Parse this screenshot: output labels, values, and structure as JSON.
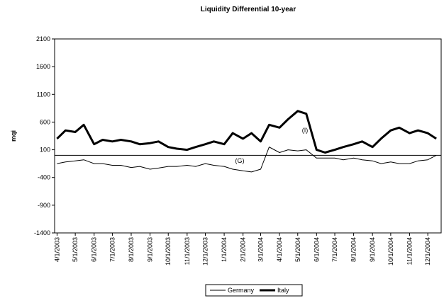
{
  "chart_data": {
    "type": "line",
    "title": "Liquidity Differential 10-year",
    "y_label": "mqi",
    "annotations": [
      "(G)",
      "(I)"
    ],
    "x": [
      "4/1/2003",
      "4/15/2003",
      "5/1/2003",
      "5/15/2003",
      "6/1/2003",
      "6/15/2003",
      "7/1/2003",
      "7/15/2003",
      "8/1/2003",
      "8/15/2003",
      "9/1/2003",
      "9/15/2003",
      "10/1/2003",
      "10/15/2003",
      "11/1/2003",
      "11/15/2003",
      "12/1/2003",
      "12/15/2003",
      "1/1/2004",
      "1/15/2004",
      "2/1/2004",
      "2/15/2004",
      "3/1/2004",
      "3/15/2004",
      "4/1/2004",
      "4/15/2004",
      "5/1/2004",
      "5/15/2004",
      "6/1/2004",
      "6/15/2004",
      "7/1/2004",
      "7/15/2004",
      "8/1/2004",
      "8/15/2004",
      "9/1/2004",
      "9/15/2004",
      "10/1/2004",
      "10/15/2004",
      "11/1/2004",
      "11/15/2004",
      "12/1/2004",
      "12/15/2004"
    ],
    "series": [
      {
        "name": "Germany",
        "color": "#000000",
        "width": 1,
        "values": [
          -150,
          -120,
          -100,
          -80,
          -150,
          -150,
          -180,
          -180,
          -220,
          -200,
          -250,
          -230,
          -200,
          -200,
          -180,
          -200,
          -150,
          -180,
          -200,
          -250,
          -280,
          -300,
          -250,
          150,
          50,
          100,
          80,
          100,
          -50,
          -50,
          -50,
          -80,
          -50,
          -80,
          -100,
          -150,
          -120,
          -150,
          -150,
          -100,
          -80,
          0
        ]
      },
      {
        "name": "Italy",
        "color": "#000000",
        "width": 3,
        "values": [
          300,
          450,
          420,
          550,
          200,
          280,
          250,
          280,
          250,
          200,
          220,
          250,
          150,
          120,
          100,
          150,
          200,
          250,
          200,
          400,
          300,
          400,
          250,
          550,
          500,
          650,
          800,
          750,
          100,
          50,
          100,
          150,
          200,
          250,
          150,
          300,
          450,
          500,
          400,
          450,
          400,
          300
        ]
      }
    ],
    "xlim": [
      "3/28/2003",
      "12/23/2004"
    ],
    "xticks": [
      "4/1/2003",
      "5/1/2003",
      "6/1/2003",
      "7/1/2003",
      "8/1/2003",
      "9/1/2003",
      "10/1/2003",
      "11/1/2003",
      "12/1/2003",
      "1/1/2004",
      "2/1/2004",
      "3/1/2004",
      "4/1/2004",
      "5/1/2004",
      "6/1/2004",
      "7/1/2004",
      "8/1/2004",
      "9/1/2004",
      "10/1/2004",
      "11/1/2004",
      "12/1/2004"
    ],
    "ylim": [
      -1400,
      2100
    ],
    "yticks": [
      -1400,
      -900,
      -400,
      100,
      600,
      1100,
      1600,
      2100
    ],
    "x_axis_crosses": 0,
    "grid": false,
    "legend": "bottom"
  }
}
